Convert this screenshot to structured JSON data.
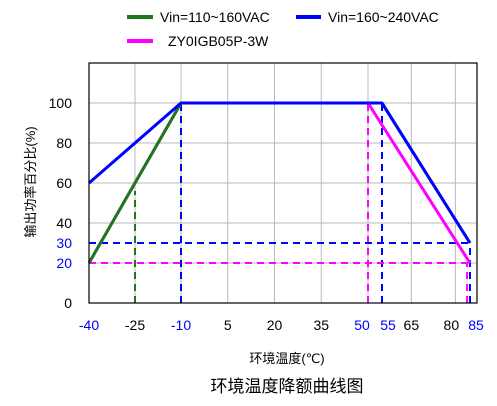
{
  "chart_data": {
    "type": "line",
    "title": "环境温度降额曲线图",
    "xlabel": "环境温度(℃)",
    "ylabel": "输出功率百分比(%)",
    "xlim": [
      -40,
      88
    ],
    "ylim": [
      0,
      120
    ],
    "x_ticks": [
      {
        "label": "-40",
        "value": -40,
        "color": "#0000ff"
      },
      {
        "label": "-25",
        "value": -25,
        "color": "#000000"
      },
      {
        "label": "-10",
        "value": -10,
        "color": "#0000ff"
      },
      {
        "label": "5",
        "value": 5,
        "color": "#000000"
      },
      {
        "label": "20",
        "value": 20,
        "color": "#000000"
      },
      {
        "label": "35",
        "value": 35,
        "color": "#000000"
      },
      {
        "label": "50",
        "value": 50,
        "color": "#0000ff"
      },
      {
        "label": "55",
        "value": 55,
        "color": "#0000ff"
      },
      {
        "label": "65",
        "value": 65,
        "color": "#000000"
      },
      {
        "label": "80",
        "value": 80,
        "color": "#000000"
      },
      {
        "label": "85",
        "value": 85,
        "color": "#0000ff"
      }
    ],
    "y_ticks": [
      {
        "label": "0",
        "value": 0,
        "color": "#000000"
      },
      {
        "label": "20",
        "value": 20,
        "color": "#0000ff"
      },
      {
        "label": "30",
        "value": 30,
        "color": "#0000ff"
      },
      {
        "label": "40",
        "value": 40,
        "color": "#000000"
      },
      {
        "label": "60",
        "value": 60,
        "color": "#000000"
      },
      {
        "label": "80",
        "value": 80,
        "color": "#000000"
      },
      {
        "label": "100",
        "value": 100,
        "color": "#000000"
      }
    ],
    "grid": true,
    "legend_position": "top",
    "series": [
      {
        "name": "Vin=110~160VAC",
        "color": "#1a7a1a",
        "points": [
          [
            -40,
            20
          ],
          [
            -10,
            100
          ],
          [
            55,
            100
          ],
          [
            85,
            30
          ]
        ]
      },
      {
        "name": "Vin=160~240VAC",
        "color": "#0000ff",
        "points": [
          [
            -40,
            60
          ],
          [
            -10,
            100
          ],
          [
            55,
            100
          ],
          [
            85,
            30
          ]
        ]
      },
      {
        "name": "ZY0IGB05P-3W",
        "color": "#ff00ff",
        "points": [
          [
            -40,
            20
          ],
          [
            -10,
            100
          ],
          [
            50,
            100
          ],
          [
            85,
            20
          ]
        ]
      }
    ],
    "guides": [
      {
        "color": "#1a7a1a",
        "points": [
          [
            -25,
            0
          ],
          [
            -25,
            56
          ]
        ]
      },
      {
        "color": "#0000ff",
        "points": [
          [
            -10,
            0
          ],
          [
            -10,
            100
          ]
        ]
      },
      {
        "color": "#ff00ff",
        "points": [
          [
            50,
            0
          ],
          [
            50,
            100
          ]
        ]
      },
      {
        "color": "#0000ff",
        "points": [
          [
            55,
            0
          ],
          [
            55,
            100
          ]
        ]
      },
      {
        "color": "#0000ff",
        "points": [
          [
            85,
            0
          ],
          [
            85,
            30
          ]
        ]
      },
      {
        "color": "#ff00ff",
        "points": [
          [
            84,
            0
          ],
          [
            84,
            20
          ]
        ]
      },
      {
        "color": "#0000ff",
        "points": [
          [
            -40,
            30
          ],
          [
            85,
            30
          ]
        ]
      },
      {
        "color": "#ff00ff",
        "points": [
          [
            -40,
            20
          ],
          [
            85,
            20
          ]
        ]
      }
    ]
  }
}
